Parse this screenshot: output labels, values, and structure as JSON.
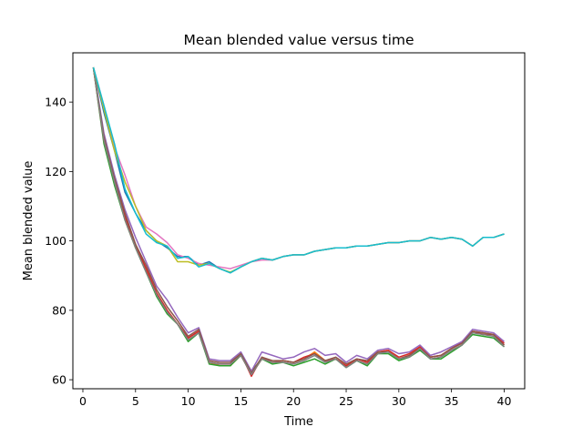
{
  "chart_data": {
    "type": "line",
    "title": "Mean blended value versus time",
    "xlabel": "Time",
    "ylabel": "Mean blended value",
    "xlim": [
      -0.95,
      41.95
    ],
    "ylim": [
      57.4,
      154.2
    ],
    "xticks": [
      0,
      5,
      10,
      15,
      20,
      25,
      30,
      35,
      40
    ],
    "yticks": [
      60,
      80,
      100,
      120,
      140
    ],
    "grid": false,
    "legend": "none",
    "x": [
      1,
      2,
      3,
      4,
      5,
      6,
      7,
      8,
      9,
      10,
      11,
      12,
      13,
      14,
      15,
      16,
      17,
      18,
      19,
      20,
      21,
      22,
      23,
      24,
      25,
      26,
      27,
      28,
      29,
      30,
      31,
      32,
      33,
      34,
      35,
      36,
      37,
      38,
      39,
      40
    ],
    "series": [
      {
        "color": "#1f77b4",
        "values": [
          150,
          137,
          126,
          114,
          108,
          103,
          100,
          98,
          95.5,
          95.5,
          93,
          94,
          92,
          90.8,
          92.5,
          94,
          95,
          94.5,
          95.5,
          96,
          96,
          97,
          97.5,
          98,
          98,
          98.5,
          98.5,
          99,
          99.5,
          99.5,
          100,
          100,
          101,
          100.5,
          101,
          100.5,
          98.5,
          101,
          101,
          102
        ]
      },
      {
        "color": "#ff7f0e",
        "values": [
          150,
          129,
          117,
          106,
          98,
          92,
          85,
          80,
          76,
          72,
          74,
          65,
          64,
          64,
          67,
          61.5,
          66,
          65,
          65.5,
          65,
          66,
          68,
          65.5,
          66,
          64,
          66,
          65,
          68,
          68.5,
          66,
          67,
          69.5,
          66.5,
          67,
          69,
          70.5,
          74,
          73.5,
          73,
          70
        ]
      },
      {
        "color": "#2ca02c",
        "values": [
          150,
          128,
          116,
          106,
          98,
          91,
          84,
          79,
          76,
          71,
          73.5,
          64.5,
          64,
          64,
          67,
          62.5,
          66,
          64.5,
          65,
          64,
          65,
          66,
          64.5,
          66,
          63.5,
          65.5,
          64,
          67.5,
          67.5,
          65.5,
          66.5,
          68.5,
          66,
          66,
          68,
          70,
          73,
          72.5,
          72,
          69.5
        ]
      },
      {
        "color": "#d62728",
        "values": [
          150,
          129,
          118,
          107,
          99,
          92,
          85,
          80,
          76,
          72,
          74,
          65,
          64.5,
          64.5,
          67.5,
          61,
          66.5,
          65,
          65.5,
          65,
          66.5,
          67.5,
          65.5,
          66,
          64,
          66,
          65,
          68,
          68.5,
          66.5,
          67.5,
          69.5,
          66.5,
          67,
          69,
          71,
          74,
          73,
          73,
          70.5
        ]
      },
      {
        "color": "#9467bd",
        "values": [
          150,
          131,
          119,
          109,
          101,
          94,
          87,
          83,
          78,
          73.5,
          75,
          66,
          65.5,
          65.5,
          68,
          62.5,
          68,
          67,
          66,
          66.5,
          68,
          69,
          67,
          67.5,
          65,
          67,
          66,
          68.5,
          69,
          67.5,
          68,
          70,
          67,
          68,
          69.5,
          71,
          74.5,
          74,
          73.5,
          71
        ]
      },
      {
        "color": "#8c564b",
        "values": [
          150,
          130,
          118,
          108,
          99,
          93,
          86,
          81,
          77,
          72.5,
          74.5,
          65.5,
          65,
          65,
          67.5,
          62,
          66.5,
          65.5,
          65.5,
          65,
          66,
          67.5,
          65.5,
          66.5,
          64.5,
          66,
          65.5,
          68,
          68,
          66,
          67,
          69,
          66.5,
          67,
          69,
          70.5,
          74,
          73.5,
          73,
          70
        ]
      },
      {
        "color": "#e377c2",
        "values": [
          150,
          139,
          127,
          119,
          110,
          104,
          102,
          99.5,
          96,
          95,
          93.5,
          93,
          92.5,
          92,
          93,
          94,
          94.5,
          94.5,
          95.5,
          96,
          96,
          97,
          97.5,
          98,
          98,
          98.5,
          98.5,
          99,
          99.5,
          99.5,
          100,
          100,
          101,
          100.5,
          101,
          100.5,
          98.5,
          101,
          101,
          102
        ]
      },
      {
        "color": "#7f7f7f",
        "values": [
          150,
          129,
          117,
          106,
          98,
          91,
          84.5,
          79.5,
          76,
          71.5,
          73.5,
          65,
          64.5,
          64.5,
          67,
          61.5,
          66,
          65,
          65,
          64.5,
          65.5,
          67,
          65,
          66,
          63.5,
          65.5,
          64.5,
          67.5,
          68,
          66,
          66.5,
          69,
          66,
          66.5,
          68.5,
          70,
          73.5,
          73,
          72.5,
          69.5
        ]
      },
      {
        "color": "#bcbd22",
        "values": [
          150,
          138,
          126,
          117,
          110,
          103,
          100,
          98.5,
          94,
          94,
          93,
          93.5,
          92,
          91,
          92.5,
          94,
          95,
          94.5,
          95.5,
          96,
          96,
          97,
          97.5,
          98,
          98,
          98.5,
          98.5,
          99,
          99.5,
          99.5,
          100,
          100,
          101,
          100.5,
          101,
          100.5,
          98.5,
          101,
          101,
          102
        ]
      },
      {
        "color": "#17becf",
        "values": [
          150,
          139,
          128,
          115,
          108,
          102,
          99.5,
          98.5,
          95,
          95.5,
          92.5,
          93.5,
          92,
          90.8,
          92.5,
          94,
          95,
          94.5,
          95.5,
          96,
          96,
          97,
          97.5,
          98,
          98,
          98.5,
          98.5,
          99,
          99.5,
          99.5,
          100,
          100,
          101,
          100.5,
          101,
          100.5,
          98.5,
          101,
          101,
          102
        ]
      }
    ]
  }
}
